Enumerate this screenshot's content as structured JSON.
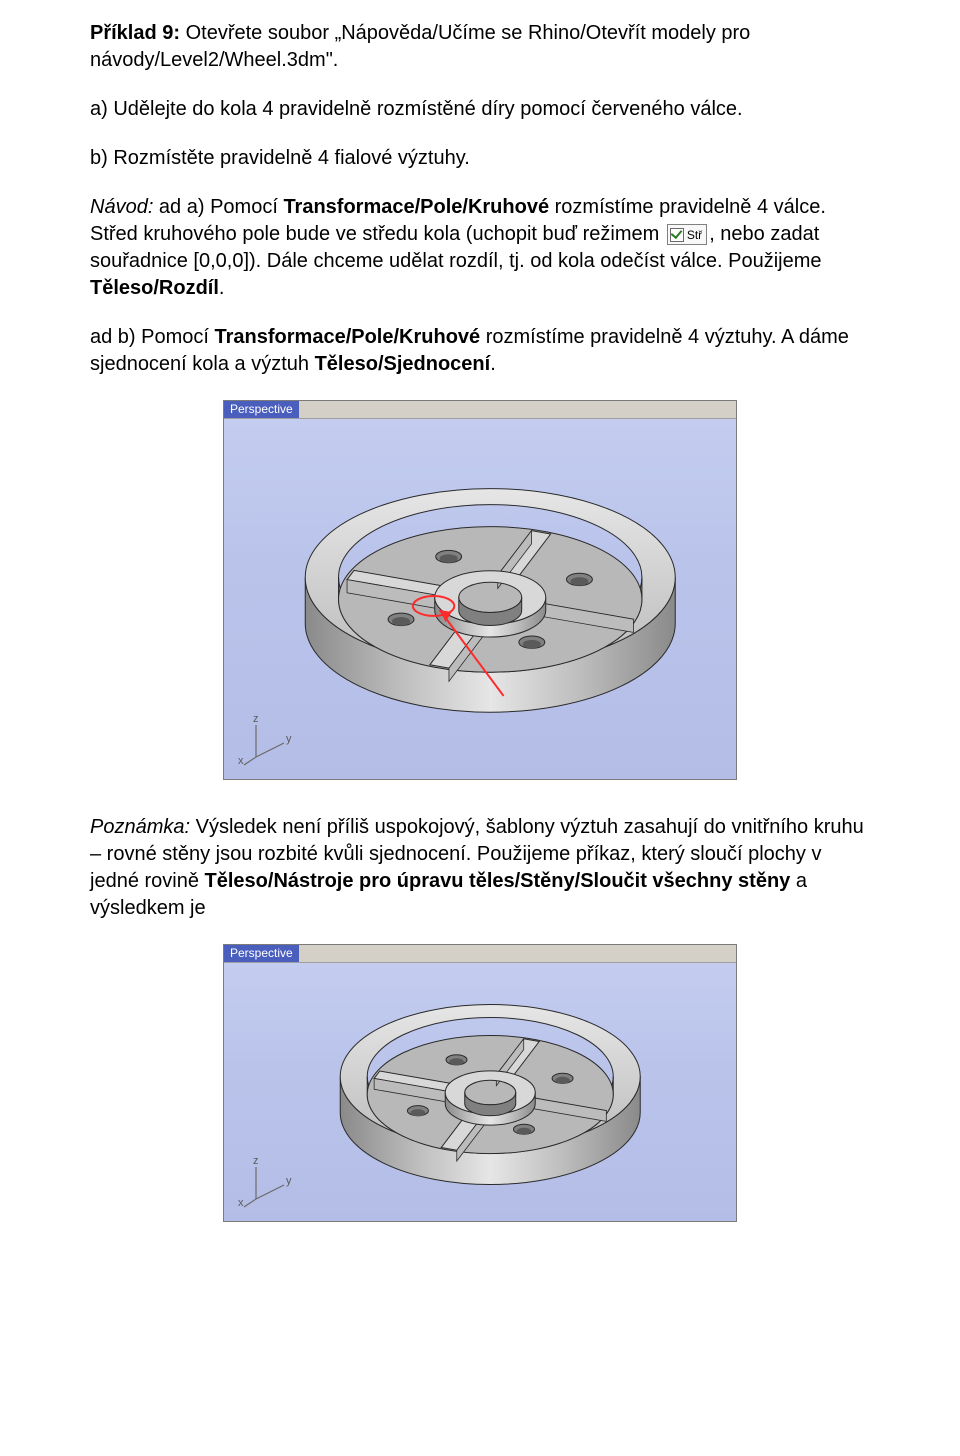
{
  "example": {
    "prefix_bold": "Příklad 9:",
    "intro": " Otevřete soubor „Nápověda/Učíme se Rhino/Otevřít modely pro návody/Level2/Wheel.3dm\".",
    "task_a": "a) Udělejte do kola 4 pravidelně rozmístěné  díry pomocí červeného válce.",
    "task_b": "b) Rozmístěte pravidelně 4 fialové výztuhy.",
    "guide_prefix_italic": "Návod:",
    "guide_a_1": " ad a) Pomocí ",
    "guide_a_bold1": "Transformace/Pole/Kruhové",
    "guide_a_2": " rozmístíme pravidelně 4 válce. Střed kruhového pole bude ve středu kola (uchopit buď režimem ",
    "guide_a_3": ", nebo zadat souřadnice [0,0,0]). Dále chceme udělat rozdíl, tj. od kola odečíst válce. Použijeme ",
    "guide_a_bold2": "Těleso/Rozdíl",
    "guide_a_4": ".",
    "guide_b_1": "ad b) Pomocí ",
    "guide_b_bold1": "Transformace/Pole/Kruhové",
    "guide_b_2": " rozmístíme pravidelně 4 výztuhy. A dáme sjednocení kola a výztuh ",
    "guide_b_bold2": "Těleso/Sjednocení",
    "guide_b_3": ".",
    "note_prefix_italic": "Poznámka:",
    "note_1": " Výsledek není příliš uspokojový, šablony výztuh zasahují do vnitřního kruhu – rovné stěny jsou rozbité kvůli sjednocení. Použijeme příkaz, který sloučí plochy v jedné rovině ",
    "note_bold1": "Těleso/Nástroje pro úpravu těles/Stěny/Sloučit všechny stěny",
    "note_2": " a výsledkem je"
  },
  "snap_widget": {
    "label": "Stř"
  },
  "viewport": {
    "tab_label": "Perspective",
    "axis_labels": {
      "z": "z",
      "y": "y",
      "x": "x"
    },
    "canvas1_h": 360,
    "canvas2_h": 258,
    "wheel_colors": {
      "rim_light": "#e6e6e6",
      "rim_mid": "#bcbcbc",
      "rim_dark": "#8a8a8a",
      "edge": "#2a2a2a",
      "face": "#d8d8d8",
      "hole_in": "#808080",
      "arrow": "#ff2a2a"
    },
    "axis_colors": {
      "line": "#6a6a6a",
      "text": "#5a5a5a"
    }
  }
}
